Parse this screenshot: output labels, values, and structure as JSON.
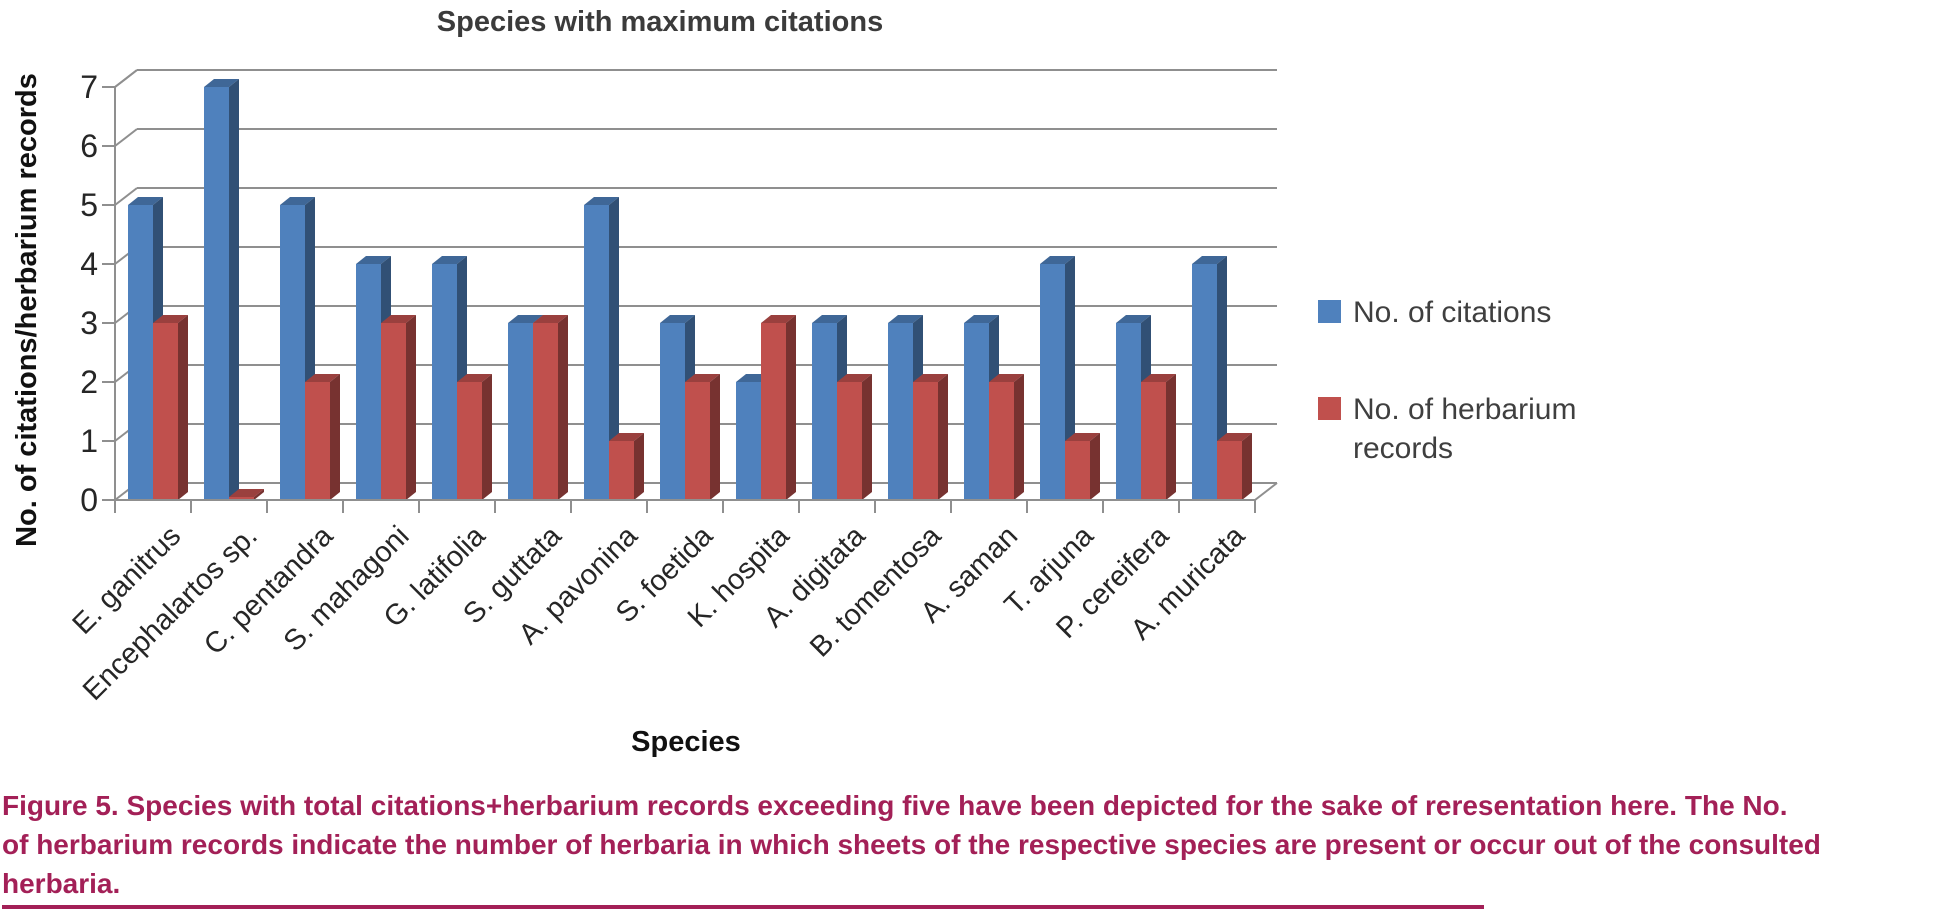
{
  "figure": {
    "caption_lines": [
      "Figure 5. Species with total citations+herbarium records exceeding five have been depicted for the sake of reresentation here. The No.",
      "of herbarium records indicate the number of herbaria in which sheets of the respective species are present or occur out of the consulted",
      "herbaria."
    ],
    "caption_color": "#A32057"
  },
  "chart_data": {
    "type": "bar",
    "style": "3d-clustered-column",
    "title": "Species with maximum citations",
    "xlabel": "Species",
    "ylabel": "No. of citations/herbarium records",
    "ylim": [
      0,
      7
    ],
    "ytick_step": 1,
    "grid": true,
    "legend_position": "right",
    "gridline_color": "#8f8f8f",
    "categories": [
      "E. ganitrus",
      "Encephalartos sp.",
      "C. pentandra",
      "S. mahagoni",
      "G. latifolia",
      "S. guttata",
      "A. pavonina",
      "S. foetida",
      "K. hospita",
      "A. digitata",
      "B. tomentosa",
      "A. saman",
      "T. arjuna",
      "P. cereifera",
      "A. muricata"
    ],
    "series": [
      {
        "name": "No. of citations",
        "color": "#4F81BD",
        "values": [
          5,
          7,
          5,
          4,
          4,
          3,
          5,
          3,
          2,
          3,
          3,
          3,
          4,
          3,
          4
        ]
      },
      {
        "name": "No. of herbarium records",
        "color": "#C0504D",
        "values": [
          3,
          0,
          2,
          3,
          2,
          3,
          1,
          2,
          3,
          2,
          2,
          2,
          1,
          2,
          1
        ]
      }
    ]
  }
}
